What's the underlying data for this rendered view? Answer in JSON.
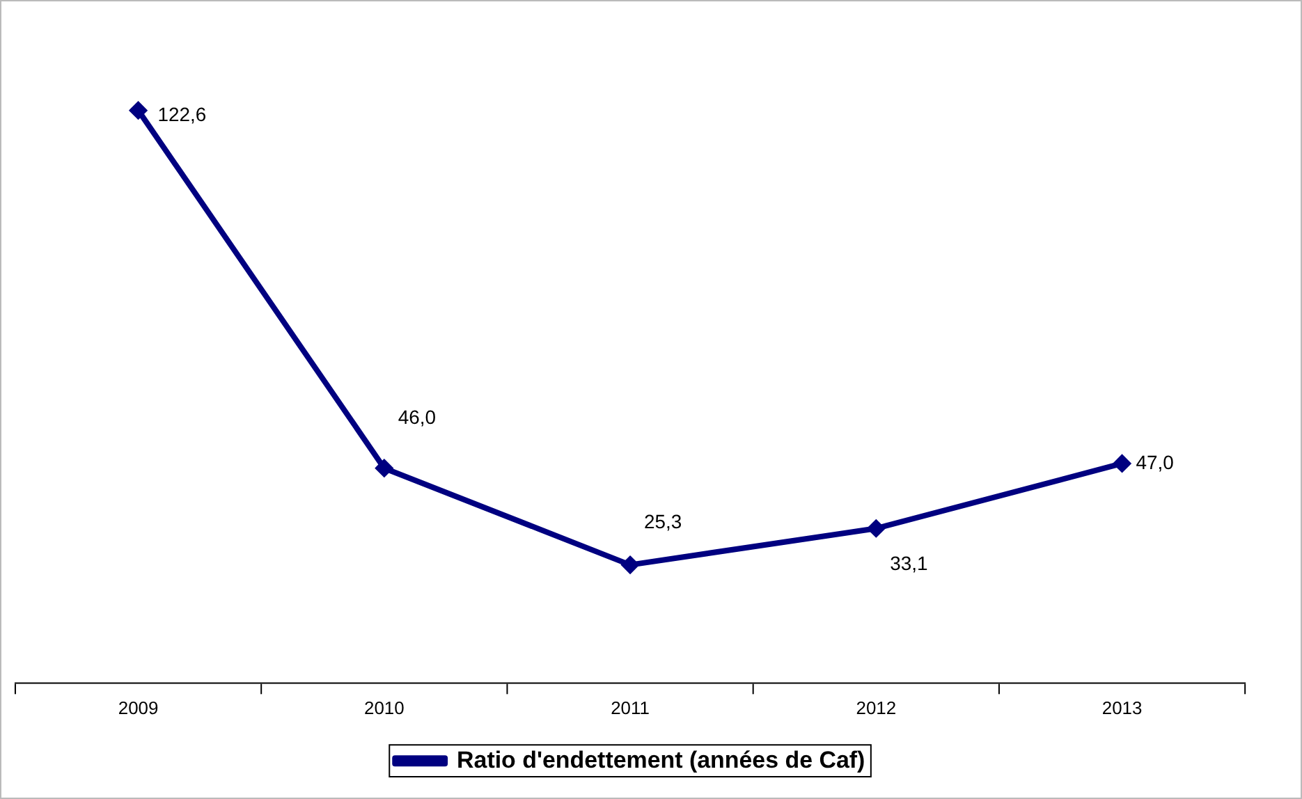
{
  "chart_data": {
    "type": "line",
    "categories": [
      "2009",
      "2010",
      "2011",
      "2012",
      "2013"
    ],
    "series": [
      {
        "name": "Ratio d'endettement (années de Caf)",
        "color": "#000080",
        "values": [
          122.6,
          46.0,
          25.3,
          33.1,
          47.0
        ],
        "value_labels": [
          "122,6",
          "46,0",
          "25,3",
          "33,1",
          "47,0"
        ]
      }
    ],
    "marker": "diamond",
    "line_style": "solid",
    "grid": false,
    "legend": "bottom",
    "tick_labels": "x"
  }
}
